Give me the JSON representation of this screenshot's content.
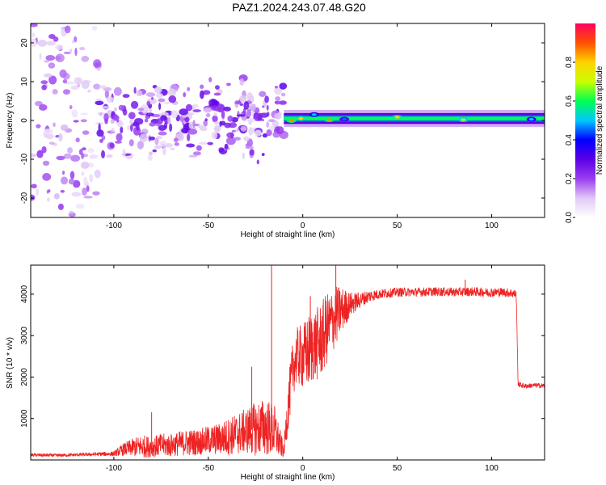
{
  "title": "PAZ1.2024.243.07.48.G20",
  "chart_data": [
    {
      "type": "heatmap",
      "xlabel": "Height of straight line (km)",
      "ylabel": "Frequency (Hz)",
      "xlim": [
        -144,
        128
      ],
      "ylim": [
        -25,
        25
      ],
      "xticks": [
        -100,
        -50,
        0,
        50,
        100
      ],
      "yticks": [
        -20,
        -10,
        0,
        10,
        20
      ],
      "colorbar": {
        "label": "Normalized spectral amplitude",
        "range": [
          0,
          1
        ],
        "ticks": [
          0.0,
          0.2,
          0.4,
          0.6,
          0.8
        ],
        "tick_labels": [
          "0.0",
          "0.2",
          "0.4",
          "0.6",
          "0.8"
        ],
        "colormap": [
          "#ffffff",
          "#e0c8f5",
          "#9a3cf0",
          "#5a00e6",
          "#0000ff",
          "#00c8ff",
          "#00ff50",
          "#c8ff00",
          "#ffd200",
          "#ff5000",
          "#ff0060"
        ]
      },
      "regions": [
        {
          "x_range": [
            -144,
            -108
          ],
          "freq_spread_hz": 25,
          "peak_amplitude": 0.25,
          "character": "diffuse scattered blobs"
        },
        {
          "x_range": [
            -108,
            -10
          ],
          "freq_spread_hz": 12,
          "peak_amplitude": 0.3,
          "character": "patchy band centered at 0 Hz"
        },
        {
          "x_range": [
            -10,
            128
          ],
          "freq_spread_hz": 2,
          "peak_amplitude": 0.9,
          "character": "narrow band near 0.5 Hz"
        }
      ],
      "hotspots": [
        {
          "x": -6,
          "y": 0,
          "amplitude": 0.85
        },
        {
          "x": -1,
          "y": 0.5,
          "amplitude": 0.8
        },
        {
          "x": 6,
          "y": 1.5,
          "amplitude": 0.5
        },
        {
          "x": 14,
          "y": 0.2,
          "amplitude": 0.85
        },
        {
          "x": 22,
          "y": 0.3,
          "amplitude": 0.45
        },
        {
          "x": 50,
          "y": 0.8,
          "amplitude": 0.8
        },
        {
          "x": 85,
          "y": 0.2,
          "amplitude": 0.75
        },
        {
          "x": 121,
          "y": 0.3,
          "amplitude": 0.5
        }
      ]
    },
    {
      "type": "line",
      "xlabel": "Height of straight line (km)",
      "ylabel": "SNR (10 * v/v)",
      "xlim": [
        -144,
        128
      ],
      "ylim": [
        0,
        4700
      ],
      "xticks": [
        -100,
        -50,
        0,
        50,
        100
      ],
      "yticks": [
        1000,
        2000,
        3000,
        4000
      ],
      "color": "#ee2222",
      "series": [
        {
          "x": [
            -144,
            -130,
            -115,
            -100,
            -95,
            -90,
            -85,
            -80,
            -75,
            -70,
            -65,
            -60,
            -55,
            -50,
            -45,
            -40,
            -35,
            -30,
            -25,
            -20,
            -15,
            -10,
            -8,
            -5,
            -3,
            0,
            3,
            5,
            8,
            10,
            12,
            15,
            18,
            20,
            25,
            30,
            35,
            40,
            50,
            60,
            70,
            80,
            90,
            100,
            105,
            110,
            113,
            114,
            118,
            122,
            128
          ],
          "y": [
            120,
            110,
            130,
            150,
            250,
            300,
            330,
            310,
            360,
            350,
            400,
            420,
            430,
            470,
            500,
            550,
            620,
            700,
            750,
            800,
            700,
            200,
            1200,
            2300,
            2500,
            2500,
            2600,
            2750,
            2800,
            2900,
            3100,
            3300,
            3500,
            3600,
            3750,
            3850,
            3950,
            4000,
            4050,
            4050,
            4060,
            4050,
            4060,
            4040,
            4050,
            4030,
            4000,
            1820,
            1780,
            1800,
            1790
          ],
          "noise_amplitude": [
            40,
            40,
            40,
            60,
            150,
            220,
            280,
            250,
            280,
            280,
            300,
            320,
            320,
            350,
            380,
            450,
            500,
            550,
            650,
            700,
            650,
            150,
            600,
            700,
            700,
            800,
            900,
            900,
            900,
            900,
            900,
            800,
            700,
            600,
            300,
            200,
            150,
            120,
            110,
            110,
            110,
            110,
            110,
            110,
            110,
            110,
            110,
            70,
            60,
            60,
            60
          ],
          "peaks": [
            {
              "x": -16.5,
              "y": 4700
            },
            {
              "x": 17.5,
              "y": 4700
            },
            {
              "x": 4,
              "y": 3950
            },
            {
              "x": 86,
              "y": 4350
            },
            {
              "x": -27,
              "y": 2250
            },
            {
              "x": -80,
              "y": 1150
            }
          ]
        }
      ]
    }
  ]
}
